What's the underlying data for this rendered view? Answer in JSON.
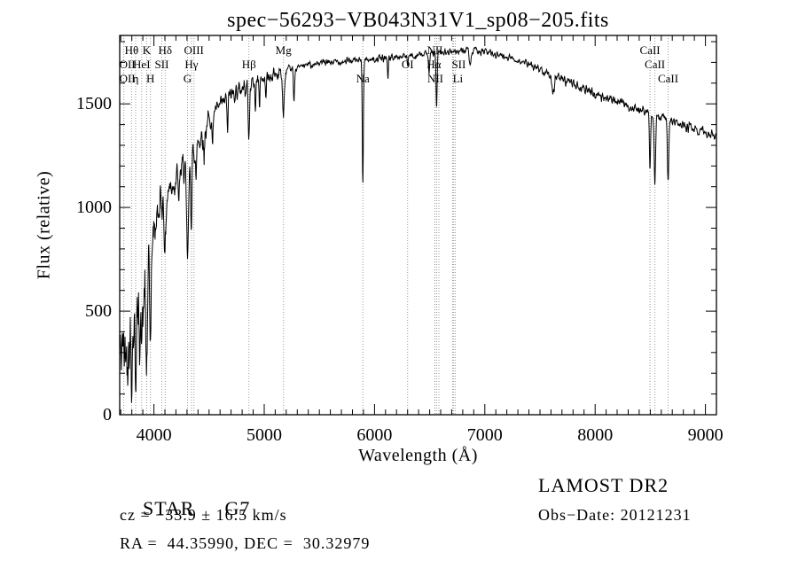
{
  "chart_data": {
    "type": "line",
    "title": "spec−56293−VB043N31V1_sp08−205.fits",
    "xlabel": "Wavelength (Å)",
    "ylabel": "Flux (relative)",
    "xlim": [
      3690,
      9100
    ],
    "ylim": [
      0,
      1830
    ],
    "xticks": [
      4000,
      5000,
      6000,
      7000,
      8000,
      9000
    ],
    "yticks": [
      0,
      500,
      1000,
      1500
    ],
    "x_minor_step": 100,
    "y_minor_step": 100,
    "grid": false,
    "legend": "none",
    "line_color": "#000000",
    "dotted_line_color": "#999999",
    "noise_seed": 42,
    "continuum": [
      [
        3690,
        300
      ],
      [
        3750,
        330
      ],
      [
        3800,
        380
      ],
      [
        3850,
        430
      ],
      [
        3900,
        500
      ],
      [
        3950,
        650
      ],
      [
        4000,
        900
      ],
      [
        4060,
        1010
      ],
      [
        4150,
        1100
      ],
      [
        4250,
        1180
      ],
      [
        4350,
        1270
      ],
      [
        4450,
        1370
      ],
      [
        4550,
        1460
      ],
      [
        4700,
        1545
      ],
      [
        4850,
        1590
      ],
      [
        5000,
        1625
      ],
      [
        5200,
        1660
      ],
      [
        5400,
        1690
      ],
      [
        5700,
        1705
      ],
      [
        6000,
        1715
      ],
      [
        6300,
        1730
      ],
      [
        6600,
        1745
      ],
      [
        6800,
        1758
      ],
      [
        7000,
        1752
      ],
      [
        7200,
        1728
      ],
      [
        7400,
        1690
      ],
      [
        7600,
        1645
      ],
      [
        7800,
        1595
      ],
      [
        8000,
        1550
      ],
      [
        8200,
        1510
      ],
      [
        8400,
        1470
      ],
      [
        8600,
        1435
      ],
      [
        8800,
        1395
      ],
      [
        9000,
        1362
      ],
      [
        9100,
        1352
      ]
    ],
    "absorption_features": [
      {
        "center": 3798,
        "depth": 150,
        "sigma": 5
      },
      {
        "center": 3835,
        "depth": 170,
        "sigma": 5
      },
      {
        "center": 3889,
        "depth": 180,
        "sigma": 5
      },
      {
        "center": 3934,
        "depth": 370,
        "sigma": 7
      },
      {
        "center": 3969,
        "depth": 340,
        "sigma": 7
      },
      {
        "center": 4102,
        "depth": 300,
        "sigma": 6
      },
      {
        "center": 4226,
        "depth": 190,
        "sigma": 4
      },
      {
        "center": 4305,
        "depth": 470,
        "sigma": 10
      },
      {
        "center": 4340,
        "depth": 310,
        "sigma": 6
      },
      {
        "center": 4383,
        "depth": 210,
        "sigma": 4
      },
      {
        "center": 4455,
        "depth": 160,
        "sigma": 4
      },
      {
        "center": 4531,
        "depth": 160,
        "sigma": 4
      },
      {
        "center": 4668,
        "depth": 175,
        "sigma": 4
      },
      {
        "center": 4861,
        "depth": 270,
        "sigma": 6
      },
      {
        "center": 4920,
        "depth": 130,
        "sigma": 4
      },
      {
        "center": 4957,
        "depth": 110,
        "sigma": 4
      },
      {
        "center": 5015,
        "depth": 110,
        "sigma": 4
      },
      {
        "center": 5175,
        "depth": 220,
        "sigma": 8
      },
      {
        "center": 5270,
        "depth": 170,
        "sigma": 5
      },
      {
        "center": 5894,
        "depth": 590,
        "sigma": 5
      },
      {
        "center": 6122,
        "depth": 90,
        "sigma": 4
      },
      {
        "center": 6300,
        "depth": 60,
        "sigma": 4
      },
      {
        "center": 6495,
        "depth": 90,
        "sigma": 4
      },
      {
        "center": 6563,
        "depth": 270,
        "sigma": 5
      },
      {
        "center": 6870,
        "depth": 70,
        "sigma": 9
      },
      {
        "center": 7620,
        "depth": 80,
        "sigma": 12
      },
      {
        "center": 8498,
        "depth": 270,
        "sigma": 5
      },
      {
        "center": 8542,
        "depth": 330,
        "sigma": 6
      },
      {
        "center": 8662,
        "depth": 300,
        "sigma": 6
      }
    ],
    "noise_segments": [
      [
        3690,
        3960,
        140
      ],
      [
        3960,
        4150,
        85
      ],
      [
        4150,
        4500,
        55
      ],
      [
        4500,
        5200,
        30
      ],
      [
        5200,
        7600,
        13
      ],
      [
        7600,
        9100,
        18
      ]
    ],
    "spectral_lines": [
      {
        "label": "Hθ",
        "wl": 3798,
        "row": 1
      },
      {
        "label": "K",
        "wl": 3934,
        "row": 1
      },
      {
        "label": "Hδ",
        "wl": 4102,
        "row": 1
      },
      {
        "label": "OIII",
        "wl": 4363,
        "row": 1
      },
      {
        "label": "Mg",
        "wl": 5175,
        "row": 1
      },
      {
        "label": "NII",
        "wl": 6548,
        "row": 1
      },
      {
        "label": "CaII",
        "wl": 8498,
        "row": 1
      },
      {
        "label": "OII",
        "wl": 3727,
        "row": 2,
        "dx": 4
      },
      {
        "label": "HeI",
        "wl": 3889,
        "row": 2
      },
      {
        "label": "SII",
        "wl": 4072,
        "row": 2
      },
      {
        "label": "Hγ",
        "wl": 4340,
        "row": 2
      },
      {
        "label": "Hβ",
        "wl": 4861,
        "row": 2
      },
      {
        "label": "OI",
        "wl": 6300,
        "row": 2
      },
      {
        "label": "Hα",
        "wl": 6563,
        "row": 2,
        "dx": -3
      },
      {
        "label": "SII",
        "wl": 6724,
        "row": 2,
        "dx": 5,
        "line": false
      },
      {
        "label": "CaII",
        "wl": 8542,
        "row": 2
      },
      {
        "label": "OII",
        "wl": 3727,
        "row": 3,
        "dx": 4
      },
      {
        "label": "η",
        "wl": 3835,
        "row": 3
      },
      {
        "label": "H",
        "wl": 3969,
        "row": 3
      },
      {
        "label": "G",
        "wl": 4305,
        "row": 3
      },
      {
        "label": "Na",
        "wl": 5894,
        "row": 3
      },
      {
        "label": "NII",
        "wl": 6584,
        "row": 3,
        "dx": -4
      },
      {
        "label": "Li",
        "wl": 6708,
        "row": 3,
        "dx": 6
      },
      {
        "label": "CaII",
        "wl": 8662,
        "row": 3
      }
    ],
    "extra_lines": [
      6717,
      6732
    ]
  },
  "annotations": {
    "object_class": "STAR",
    "subclass": "G7",
    "survey": "LAMOST DR2",
    "cz": "cz = −33.9 ± 16.5 km/s",
    "obs_date": "Obs−Date: 20121231",
    "coords": "RA =  44.35990, DEC =  30.32979"
  }
}
